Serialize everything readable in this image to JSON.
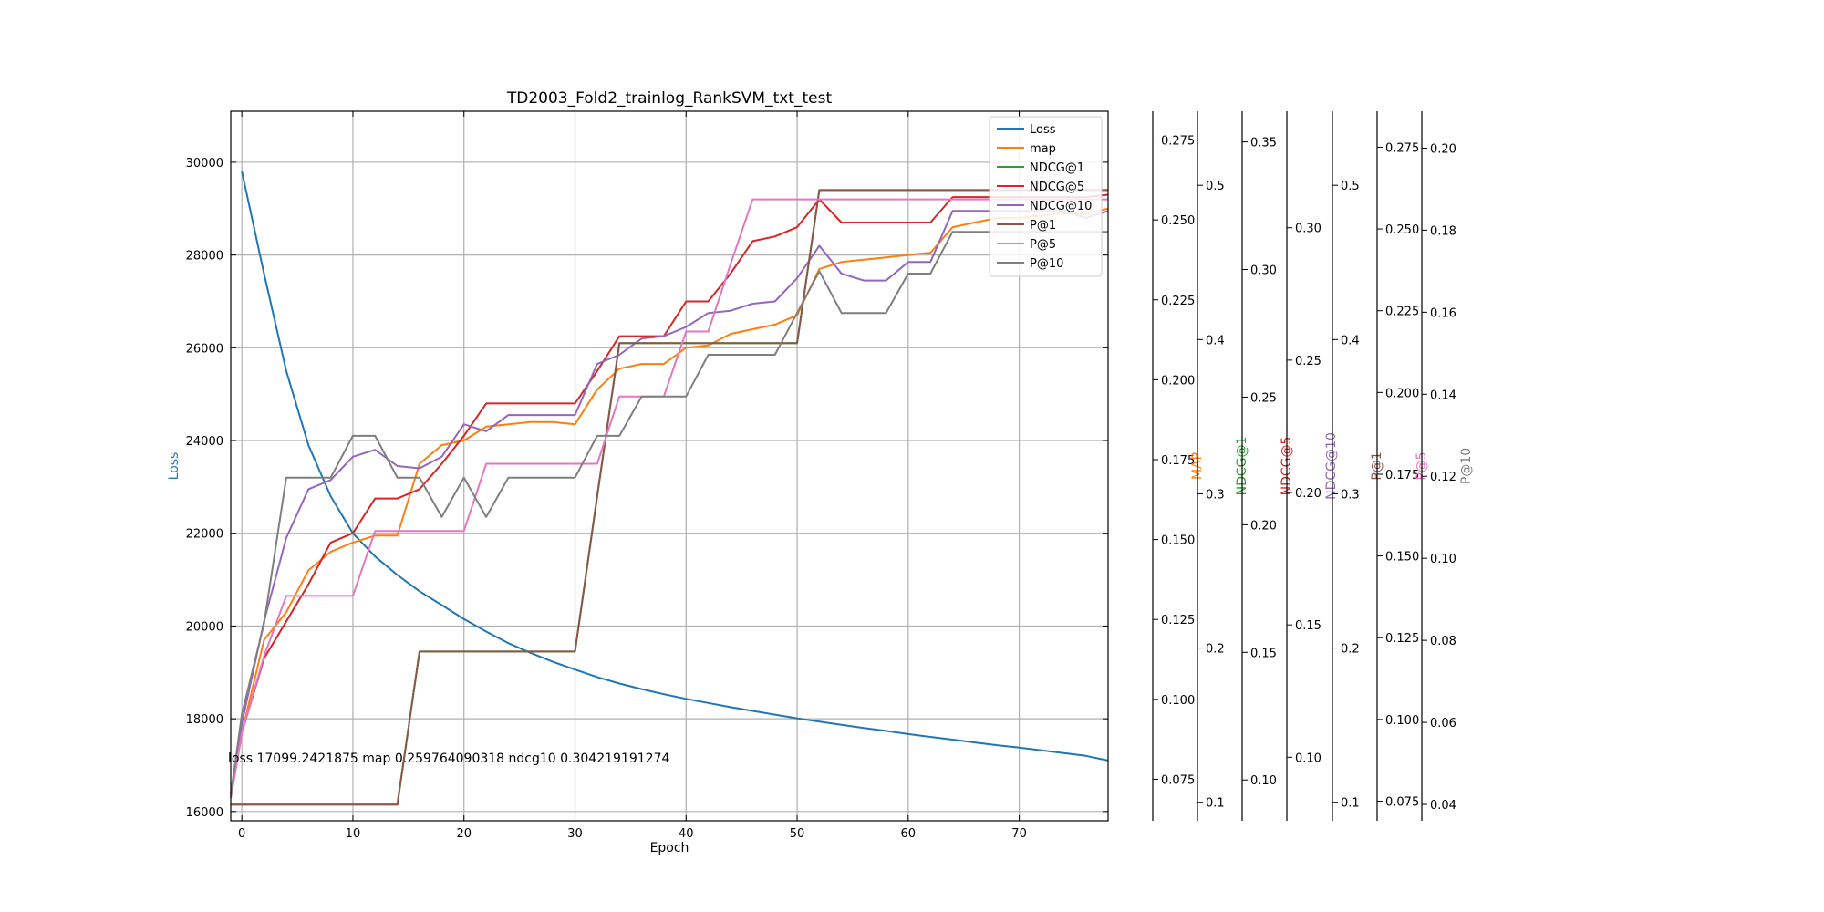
{
  "chart_data": {
    "type": "line",
    "title": "TD2003_Fold2_trainlog_RankSVM_txt_test",
    "xlabel": "Epoch",
    "ylabel": "Loss",
    "xlim": [
      -1,
      78
    ],
    "ylim": [
      15800,
      31100
    ],
    "grid": true,
    "legend_position": "top-right",
    "x_ticks": [
      "0",
      "10",
      "20",
      "30",
      "40",
      "50",
      "60",
      "70"
    ],
    "y_ticks": [
      "16000",
      "18000",
      "20000",
      "22000",
      "24000",
      "26000",
      "28000",
      "30000"
    ],
    "annotation": "loss 17099.2421875 map 0.259764090318 ndcg10 0.304219191274",
    "series": [
      {
        "name": "Loss",
        "color": "#1f77b4",
        "x": [
          0,
          2,
          4,
          6,
          8,
          10,
          12,
          14,
          16,
          18,
          20,
          22,
          24,
          26,
          28,
          30,
          32,
          34,
          36,
          38,
          40,
          42,
          44,
          46,
          48,
          50,
          52,
          54,
          56,
          58,
          60,
          62,
          64,
          66,
          68,
          70,
          72,
          74,
          76,
          78
        ],
        "values": [
          29800,
          27600,
          25500,
          23900,
          22800,
          22000,
          21500,
          21100,
          20750,
          20450,
          20150,
          19880,
          19630,
          19420,
          19230,
          19060,
          18900,
          18760,
          18640,
          18530,
          18430,
          18340,
          18250,
          18170,
          18090,
          18010,
          17940,
          17870,
          17800,
          17740,
          17670,
          17610,
          17550,
          17490,
          17430,
          17380,
          17320,
          17260,
          17200,
          17100
        ]
      },
      {
        "name": "map",
        "color": "#ff7f0e",
        "x": [
          -1,
          0,
          2,
          4,
          6,
          8,
          10,
          12,
          14,
          16,
          18,
          20,
          22,
          24,
          26,
          28,
          30,
          32,
          34,
          36,
          38,
          40,
          42,
          44,
          46,
          48,
          50,
          52,
          54,
          56,
          58,
          60,
          62,
          64,
          66,
          68,
          70,
          72,
          74,
          76,
          78
        ],
        "values": [
          16300,
          17700,
          19700,
          20300,
          21200,
          21600,
          21800,
          21950,
          21950,
          23500,
          23900,
          24000,
          24300,
          24350,
          24400,
          24400,
          24350,
          25100,
          25550,
          25650,
          25650,
          26000,
          26050,
          26300,
          26400,
          26500,
          26700,
          27700,
          27850,
          27900,
          27950,
          28000,
          28050,
          28600,
          28700,
          28800,
          28800,
          28850,
          28900,
          28900,
          29000
        ]
      },
      {
        "name": "NDCG@1",
        "color": "#2ca02c",
        "x": [
          -1,
          0,
          2,
          4,
          6,
          8,
          10,
          12,
          14,
          16,
          18,
          20,
          22,
          24,
          26,
          28,
          30,
          32,
          34,
          36,
          38,
          40,
          42,
          44,
          46,
          48,
          50,
          52,
          54,
          56,
          58,
          60,
          62,
          64,
          66,
          68,
          70,
          72,
          74,
          76,
          78
        ],
        "values": [
          16150,
          16150,
          16150,
          16150,
          16150,
          16150,
          16150,
          16150,
          16150,
          19450,
          19450,
          19450,
          19450,
          19450,
          19450,
          19450,
          19450,
          22800,
          26100,
          26100,
          26100,
          26100,
          26100,
          26100,
          26100,
          26100,
          26100,
          29400,
          29400,
          29400,
          29400,
          29400,
          29400,
          29400,
          29400,
          29400,
          29400,
          29400,
          29400,
          29400,
          29400
        ]
      },
      {
        "name": "NDCG@5",
        "color": "#d62728",
        "x": [
          -1,
          0,
          2,
          4,
          6,
          8,
          10,
          12,
          14,
          16,
          18,
          20,
          22,
          24,
          26,
          28,
          30,
          32,
          34,
          36,
          38,
          40,
          42,
          44,
          46,
          48,
          50,
          52,
          54,
          56,
          58,
          60,
          62,
          64,
          66,
          68,
          70,
          72,
          74,
          76,
          78
        ],
        "values": [
          16300,
          17700,
          19300,
          20100,
          20900,
          21800,
          22000,
          22750,
          22750,
          22950,
          23500,
          24100,
          24800,
          24800,
          24800,
          24800,
          24800,
          25500,
          26250,
          26250,
          26250,
          27000,
          27000,
          27600,
          28300,
          28400,
          28600,
          29200,
          28700,
          28700,
          28700,
          28700,
          28700,
          29250,
          29250,
          29250,
          29250,
          29250,
          29250,
          29250,
          29300
        ]
      },
      {
        "name": "NDCG@10",
        "color": "#9467bd",
        "x": [
          -1,
          0,
          2,
          4,
          6,
          8,
          10,
          12,
          14,
          16,
          18,
          20,
          22,
          24,
          26,
          28,
          30,
          32,
          34,
          36,
          38,
          40,
          42,
          44,
          46,
          48,
          50,
          52,
          54,
          56,
          58,
          60,
          62,
          64,
          66,
          68,
          70,
          72,
          74,
          76,
          78
        ],
        "values": [
          16400,
          17900,
          20100,
          21900,
          22950,
          23150,
          23650,
          23800,
          23450,
          23400,
          23650,
          24350,
          24200,
          24550,
          24550,
          24550,
          24550,
          25650,
          25850,
          26200,
          26250,
          26450,
          26750,
          26800,
          26950,
          27000,
          27500,
          28200,
          27600,
          27450,
          27450,
          27850,
          27850,
          28950,
          28950,
          28950,
          28950,
          28950,
          28950,
          28800,
          28950
        ]
      },
      {
        "name": "P@1",
        "color": "#8c564b",
        "x": [
          -1,
          0,
          2,
          4,
          6,
          8,
          10,
          12,
          14,
          16,
          18,
          20,
          22,
          24,
          26,
          28,
          30,
          32,
          34,
          36,
          38,
          40,
          42,
          44,
          46,
          48,
          50,
          52,
          54,
          56,
          58,
          60,
          62,
          64,
          66,
          68,
          70,
          72,
          74,
          76,
          78
        ],
        "values": [
          16150,
          16150,
          16150,
          16150,
          16150,
          16150,
          16150,
          16150,
          16150,
          19450,
          19450,
          19450,
          19450,
          19450,
          19450,
          19450,
          19450,
          22800,
          26100,
          26100,
          26100,
          26100,
          26100,
          26100,
          26100,
          26100,
          26100,
          29400,
          29400,
          29400,
          29400,
          29400,
          29400,
          29400,
          29400,
          29400,
          29400,
          29400,
          29400,
          29400,
          29400
        ]
      },
      {
        "name": "P@5",
        "color": "#e377c2",
        "x": [
          -1,
          0,
          2,
          4,
          6,
          8,
          10,
          12,
          14,
          16,
          18,
          20,
          22,
          24,
          26,
          28,
          30,
          32,
          34,
          36,
          38,
          40,
          42,
          44,
          46,
          48,
          50,
          52,
          54,
          56,
          58,
          60,
          62,
          64,
          66,
          68,
          70,
          72,
          74,
          76,
          78
        ],
        "values": [
          16300,
          17700,
          19350,
          20650,
          20650,
          20650,
          20650,
          22050,
          22050,
          22050,
          22050,
          22050,
          23500,
          23500,
          23500,
          23500,
          23500,
          23500,
          24950,
          24950,
          24950,
          26350,
          26350,
          27800,
          29200,
          29200,
          29200,
          29200,
          29200,
          29200,
          29200,
          29200,
          29200,
          29200,
          29200,
          29200,
          29200,
          29200,
          29200,
          29200,
          29200
        ]
      },
      {
        "name": "P@10",
        "color": "#7f7f7f",
        "x": [
          -1,
          0,
          2,
          4,
          6,
          8,
          10,
          12,
          14,
          16,
          18,
          20,
          22,
          24,
          26,
          28,
          30,
          32,
          34,
          36,
          38,
          40,
          42,
          44,
          46,
          48,
          50,
          52,
          54,
          56,
          58,
          60,
          62,
          64,
          66,
          68,
          70,
          72,
          74,
          76,
          78
        ],
        "values": [
          16350,
          18100,
          20050,
          23200,
          23200,
          23200,
          24100,
          24100,
          23200,
          23200,
          22350,
          23200,
          22350,
          23200,
          23200,
          23200,
          23200,
          24100,
          24100,
          24950,
          24950,
          24950,
          25850,
          25850,
          25850,
          25850,
          26750,
          27650,
          26750,
          26750,
          26750,
          27600,
          27600,
          28500,
          28500,
          28500,
          28500,
          28500,
          28500,
          28500,
          28500
        ]
      }
    ],
    "secondary_axes": [
      {
        "name": "MAP",
        "color": "#ff7f0e",
        "min": 0.062,
        "max": 0.284,
        "ticks": [
          "0.075",
          "0.100",
          "0.125",
          "0.150",
          "0.175",
          "0.200",
          "0.225",
          "0.250",
          "0.275"
        ]
      },
      {
        "name": "NDCG@1",
        "color": "#2ca02c",
        "min": 0.088,
        "max": 0.548,
        "ticks": [
          "0.1",
          "0.2",
          "0.3",
          "0.4",
          "0.5"
        ]
      },
      {
        "name": "NDCG@5",
        "color": "#d62728",
        "min": 0.084,
        "max": 0.362,
        "ticks": [
          "0.10",
          "0.15",
          "0.20",
          "0.25",
          "0.30",
          "0.35"
        ]
      },
      {
        "name": "NDCG@10",
        "color": "#9467bd",
        "min": 0.076,
        "max": 0.344,
        "ticks": [
          "0.10",
          "0.15",
          "0.20",
          "0.25",
          "0.30"
        ]
      },
      {
        "name": "P@1",
        "color": "#8c564b",
        "min": 0.088,
        "max": 0.548,
        "ticks": [
          "0.1",
          "0.2",
          "0.3",
          "0.4",
          "0.5"
        ]
      },
      {
        "name": "P@5",
        "color": "#e377c2",
        "min": 0.069,
        "max": 0.286,
        "ticks": [
          "0.075",
          "0.100",
          "0.125",
          "0.150",
          "0.175",
          "0.200",
          "0.225",
          "0.250",
          "0.275"
        ]
      },
      {
        "name": "P@10",
        "color": "#7f7f7f",
        "min": 0.036,
        "max": 0.209,
        "ticks": [
          "0.04",
          "0.06",
          "0.08",
          "0.10",
          "0.12",
          "0.14",
          "0.16",
          "0.18",
          "0.20"
        ]
      }
    ]
  }
}
